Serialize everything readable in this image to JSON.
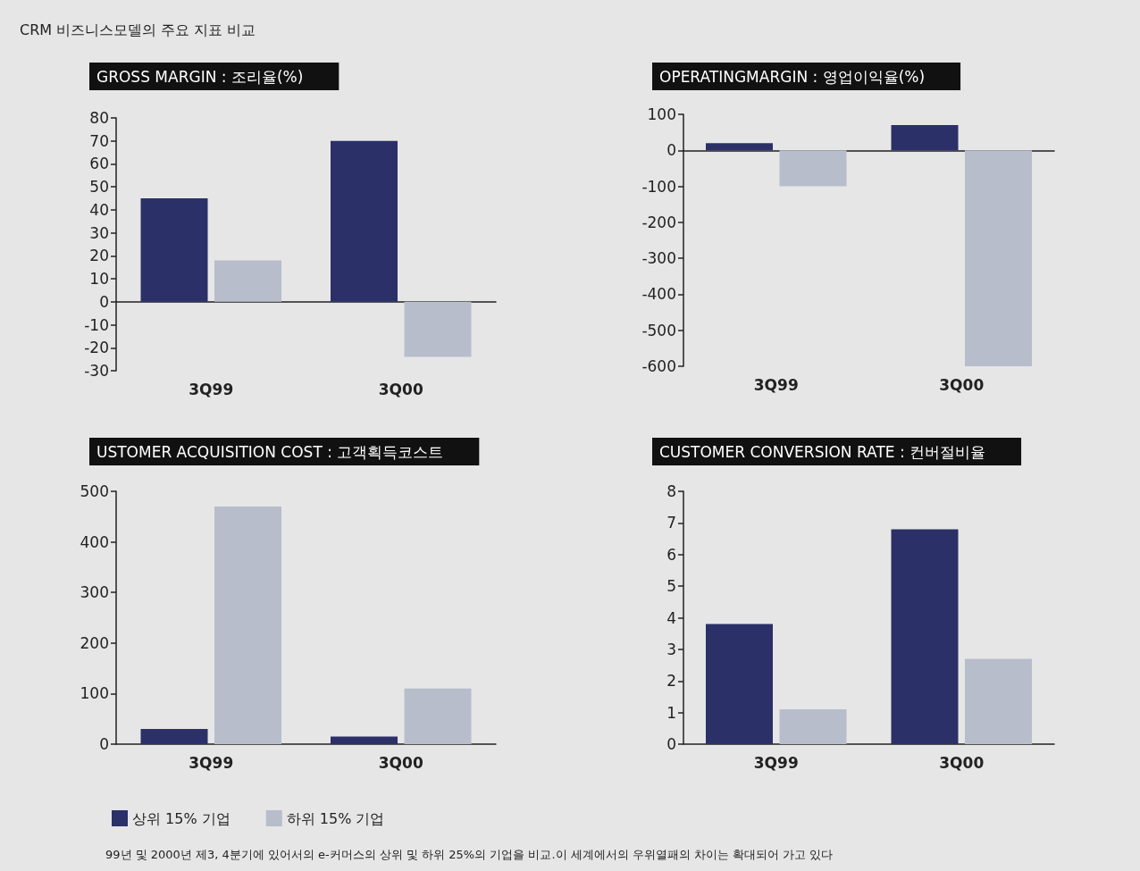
{
  "chart_data": [
    {
      "type": "bar",
      "title": "GROSS MARGIN : 조리율(%)",
      "annotations": [
        "CRM  비즈니스모델의 주요 지표 비교"
      ],
      "categories": [
        "3Q99",
        "3Q00"
      ],
      "series": [
        {
          "color": "#2b3068",
          "values": [
            45,
            70
          ]
        },
        {
          "color": "#b8bdcc",
          "values": [
            18,
            -24
          ]
        }
      ],
      "ylim": [
        -30,
        80
      ],
      "yticks": [
        -30,
        -20,
        -10,
        0,
        10,
        20,
        30,
        40,
        50,
        60,
        70,
        80
      ]
    },
    {
      "type": "bar",
      "title": "OPERATINGMARGIN : 영업이익율(%)",
      "categories": [
        "3Q99",
        "3Q00"
      ],
      "series": [
        {
          "color": "#2b3068",
          "values": [
            20,
            70
          ]
        },
        {
          "color": "#b8bdcc",
          "values": [
            -100,
            -600
          ]
        }
      ],
      "ylim": [
        -600,
        100
      ],
      "yticks": [
        -600,
        -500,
        -400,
        -300,
        -200,
        -100,
        0,
        100
      ]
    },
    {
      "type": "bar",
      "title": "USTOMER ACQUISITION COST : 고객획득코스트",
      "annotations": [
        "99년 및 2000년 제3, 4분기에 있어서의 e-커머스의 상위 및 하위 25%의 기업을 비교.이 세계에서의 우위열패의 차이는 확대되어 가고 있다"
      ],
      "categories": [
        "3Q99",
        "3Q00"
      ],
      "series": [
        {
          "name": "상위 15% 기업",
          "color": "#2b3068",
          "values": [
            30,
            15
          ]
        },
        {
          "name": "하위 15% 기업",
          "color": "#b8bdcc",
          "values": [
            470,
            110
          ]
        }
      ],
      "ylim": [
        0,
        500
      ],
      "yticks": [
        0,
        100,
        200,
        300,
        400,
        500
      ],
      "legend": "bottom"
    },
    {
      "type": "bar",
      "title": "CUSTOMER CONVERSION RATE : 컨버절비율",
      "categories": [
        "3Q99",
        "3Q00"
      ],
      "series": [
        {
          "color": "#2b3068",
          "values": [
            3.8,
            6.8
          ]
        },
        {
          "color": "#b8bdcc",
          "values": [
            1.1,
            2.7
          ]
        }
      ],
      "ylim": [
        0,
        8
      ],
      "yticks": [
        0,
        1,
        2,
        3,
        4,
        5,
        6,
        7,
        8
      ]
    }
  ]
}
